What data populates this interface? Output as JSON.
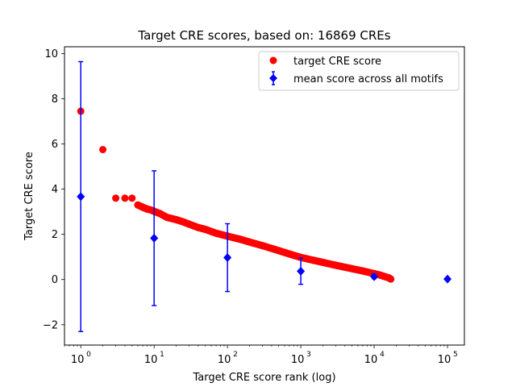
{
  "chart_data": {
    "type": "scatter",
    "title": "Target CRE scores, based on: 16869 CREs",
    "xlabel": "Target CRE score rank (log)",
    "ylabel": "Target CRE score",
    "xscale": "log",
    "xlim": [
      0.6,
      170000
    ],
    "ylim": [
      -2.9,
      10.3
    ],
    "x_ticks": [
      {
        "base": "10",
        "exp": "0",
        "value": 1
      },
      {
        "base": "10",
        "exp": "1",
        "value": 10
      },
      {
        "base": "10",
        "exp": "2",
        "value": 100
      },
      {
        "base": "10",
        "exp": "3",
        "value": 1000
      },
      {
        "base": "10",
        "exp": "4",
        "value": 10000
      },
      {
        "base": "10",
        "exp": "5",
        "value": 100000
      }
    ],
    "y_ticks": [
      "−2",
      "0",
      "2",
      "4",
      "6",
      "8",
      "10"
    ],
    "legend_position": "top-right",
    "series": [
      {
        "name": "target CRE score",
        "color": "#ff0000",
        "marker": "circle",
        "points": [
          [
            1,
            7.45
          ],
          [
            2,
            5.75
          ],
          [
            3,
            3.6
          ],
          [
            4,
            3.6
          ],
          [
            5,
            3.6
          ],
          [
            6,
            3.3
          ],
          [
            7,
            3.2
          ],
          [
            8,
            3.12
          ],
          [
            9,
            3.08
          ],
          [
            10,
            3.02
          ],
          [
            12,
            2.92
          ],
          [
            15,
            2.75
          ],
          [
            20,
            2.65
          ],
          [
            25,
            2.55
          ],
          [
            30,
            2.45
          ],
          [
            40,
            2.3
          ],
          [
            50,
            2.22
          ],
          [
            70,
            2.05
          ],
          [
            100,
            1.92
          ],
          [
            150,
            1.78
          ],
          [
            200,
            1.66
          ],
          [
            300,
            1.5
          ],
          [
            500,
            1.28
          ],
          [
            700,
            1.13
          ],
          [
            1000,
            0.98
          ],
          [
            1500,
            0.85
          ],
          [
            2000,
            0.76
          ],
          [
            3000,
            0.63
          ],
          [
            5000,
            0.48
          ],
          [
            7000,
            0.38
          ],
          [
            10000,
            0.26
          ],
          [
            12000,
            0.2
          ],
          [
            14000,
            0.13
          ],
          [
            16000,
            0.07
          ],
          [
            16869,
            0.02
          ]
        ]
      },
      {
        "name": "mean score across all motifs",
        "color": "#0000ff",
        "marker": "diamond",
        "points": [
          {
            "x": 1,
            "y": 3.67,
            "err": 5.97
          },
          {
            "x": 10,
            "y": 1.83,
            "err": 2.98
          },
          {
            "x": 100,
            "y": 0.97,
            "err": 1.5
          },
          {
            "x": 1000,
            "y": 0.37,
            "err": 0.58
          },
          {
            "x": 10000,
            "y": 0.13,
            "err": 0.09
          },
          {
            "x": 100000,
            "y": 0.02,
            "err": 0
          }
        ]
      }
    ]
  }
}
